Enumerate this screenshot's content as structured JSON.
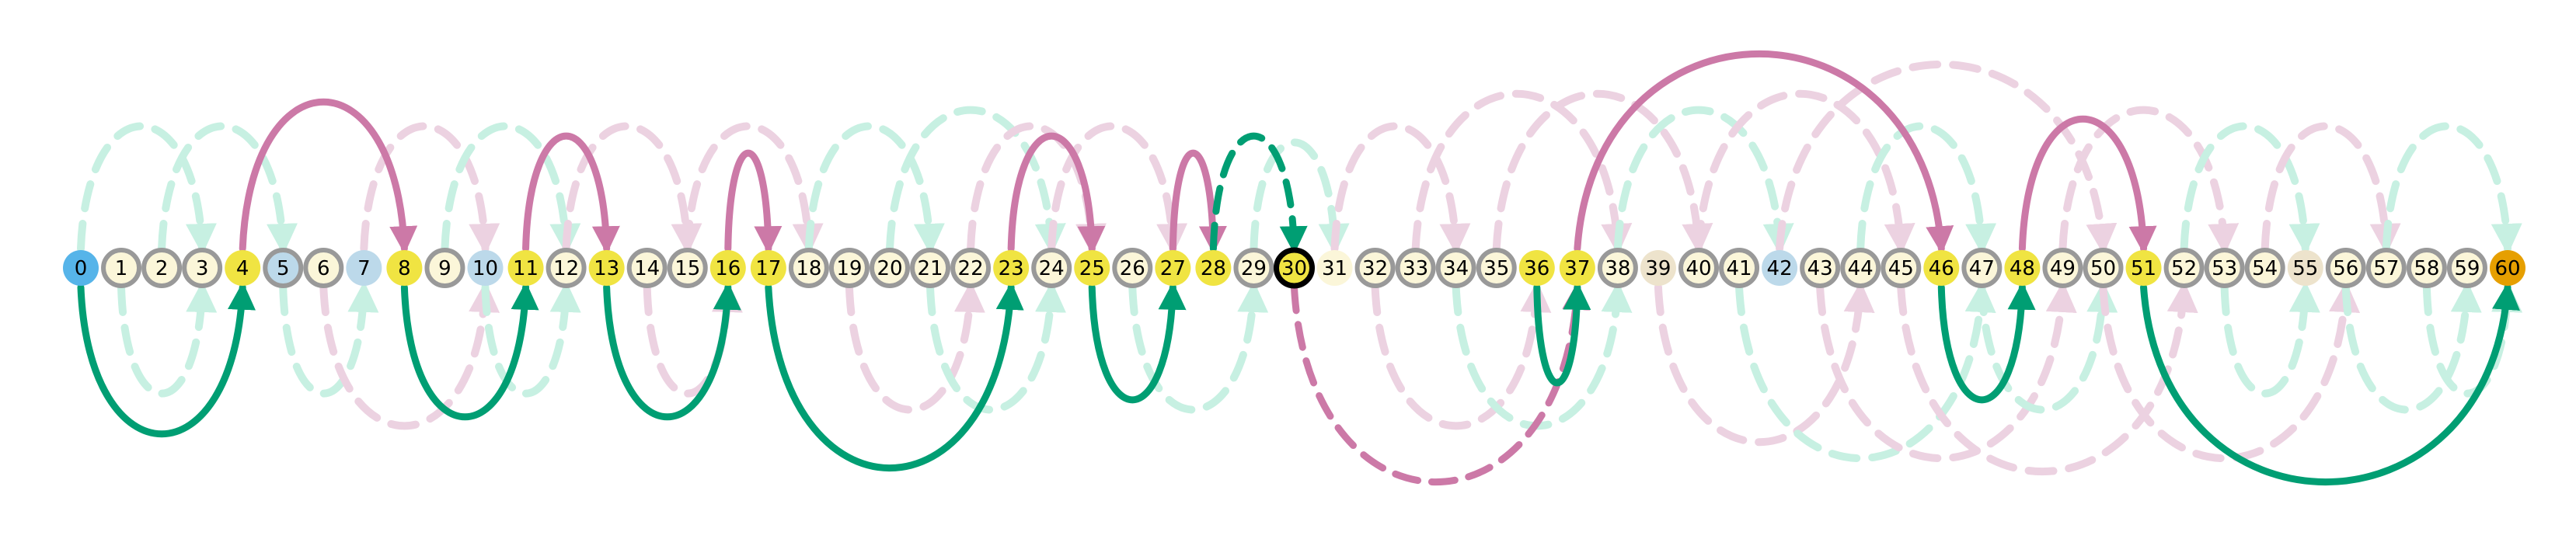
{
  "nodes": [
    {
      "label": "0",
      "color": "#56b4e9",
      "ring": "none"
    },
    {
      "label": "1",
      "color": "#fbf6d9",
      "ring": "gray"
    },
    {
      "label": "2",
      "color": "#fbf6d9",
      "ring": "gray"
    },
    {
      "label": "3",
      "color": "#fbf6d9",
      "ring": "gray"
    },
    {
      "label": "4",
      "color": "#f0e442",
      "ring": "none"
    },
    {
      "label": "5",
      "color": "#bcd9ea",
      "ring": "gray"
    },
    {
      "label": "6",
      "color": "#fbf6d9",
      "ring": "gray"
    },
    {
      "label": "7",
      "color": "#bcd9ea",
      "ring": "none"
    },
    {
      "label": "8",
      "color": "#f0e442",
      "ring": "none"
    },
    {
      "label": "9",
      "color": "#fbf6d9",
      "ring": "gray"
    },
    {
      "label": "10",
      "color": "#bcd9ea",
      "ring": "none"
    },
    {
      "label": "11",
      "color": "#f0e442",
      "ring": "none"
    },
    {
      "label": "12",
      "color": "#fbf6d9",
      "ring": "gray"
    },
    {
      "label": "13",
      "color": "#f0e442",
      "ring": "none"
    },
    {
      "label": "14",
      "color": "#fbf6d9",
      "ring": "gray"
    },
    {
      "label": "15",
      "color": "#fbf6d9",
      "ring": "gray"
    },
    {
      "label": "16",
      "color": "#f0e442",
      "ring": "none"
    },
    {
      "label": "17",
      "color": "#f0e442",
      "ring": "none"
    },
    {
      "label": "18",
      "color": "#fbf6d9",
      "ring": "gray"
    },
    {
      "label": "19",
      "color": "#fbf6d9",
      "ring": "gray"
    },
    {
      "label": "20",
      "color": "#fbf6d9",
      "ring": "gray"
    },
    {
      "label": "21",
      "color": "#fbf6d9",
      "ring": "gray"
    },
    {
      "label": "22",
      "color": "#fbf6d9",
      "ring": "gray"
    },
    {
      "label": "23",
      "color": "#f0e442",
      "ring": "none"
    },
    {
      "label": "24",
      "color": "#fbf6d9",
      "ring": "gray"
    },
    {
      "label": "25",
      "color": "#f0e442",
      "ring": "none"
    },
    {
      "label": "26",
      "color": "#fbf6d9",
      "ring": "gray"
    },
    {
      "label": "27",
      "color": "#f0e442",
      "ring": "none"
    },
    {
      "label": "28",
      "color": "#f0e442",
      "ring": "none"
    },
    {
      "label": "29",
      "color": "#fbf6d9",
      "ring": "gray"
    },
    {
      "label": "30",
      "color": "#f0e442",
      "ring": "black"
    },
    {
      "label": "31",
      "color": "#fbf6d9",
      "ring": "none"
    },
    {
      "label": "32",
      "color": "#fbf6d9",
      "ring": "gray"
    },
    {
      "label": "33",
      "color": "#fbf6d9",
      "ring": "gray"
    },
    {
      "label": "34",
      "color": "#fbf6d9",
      "ring": "gray"
    },
    {
      "label": "35",
      "color": "#fbf6d9",
      "ring": "gray"
    },
    {
      "label": "36",
      "color": "#f0e442",
      "ring": "none"
    },
    {
      "label": "37",
      "color": "#f0e442",
      "ring": "none"
    },
    {
      "label": "38",
      "color": "#fbf6d9",
      "ring": "gray"
    },
    {
      "label": "39",
      "color": "#ede3cc",
      "ring": "none"
    },
    {
      "label": "40",
      "color": "#fbf6d9",
      "ring": "gray"
    },
    {
      "label": "41",
      "color": "#fbf6d9",
      "ring": "gray"
    },
    {
      "label": "42",
      "color": "#bcd9ea",
      "ring": "none"
    },
    {
      "label": "43",
      "color": "#fbf6d9",
      "ring": "gray"
    },
    {
      "label": "44",
      "color": "#fbf6d9",
      "ring": "gray"
    },
    {
      "label": "45",
      "color": "#fbf6d9",
      "ring": "gray"
    },
    {
      "label": "46",
      "color": "#f0e442",
      "ring": "none"
    },
    {
      "label": "47",
      "color": "#fbf6d9",
      "ring": "gray"
    },
    {
      "label": "48",
      "color": "#f0e442",
      "ring": "none"
    },
    {
      "label": "49",
      "color": "#fbf6d9",
      "ring": "gray"
    },
    {
      "label": "50",
      "color": "#fbf6d9",
      "ring": "gray"
    },
    {
      "label": "51",
      "color": "#f0e442",
      "ring": "none"
    },
    {
      "label": "52",
      "color": "#fbf6d9",
      "ring": "gray"
    },
    {
      "label": "53",
      "color": "#fbf6d9",
      "ring": "gray"
    },
    {
      "label": "54",
      "color": "#fbf6d9",
      "ring": "gray"
    },
    {
      "label": "55",
      "color": "#ede3cc",
      "ring": "none"
    },
    {
      "label": "56",
      "color": "#fbf6d9",
      "ring": "gray"
    },
    {
      "label": "57",
      "color": "#fbf6d9",
      "ring": "gray"
    },
    {
      "label": "58",
      "color": "#fbf6d9",
      "ring": "gray"
    },
    {
      "label": "59",
      "color": "#fbf6d9",
      "ring": "gray"
    },
    {
      "label": "60",
      "color": "#e69f00",
      "ring": "none"
    }
  ],
  "colors": {
    "ladder": "#cc79a7",
    "snake": "#009e73",
    "ladder_faint": "#ecd2e1",
    "snake_faint": "#c7f0e2",
    "ring_gray": "#999999",
    "ring_black": "#000000"
  },
  "bold_jumps": [
    {
      "from": 0,
      "to": 4,
      "kind": "snake",
      "side": "below",
      "style": "solid"
    },
    {
      "from": 4,
      "to": 8,
      "kind": "ladder",
      "side": "above",
      "style": "solid"
    },
    {
      "from": 8,
      "to": 11,
      "kind": "snake",
      "side": "below",
      "style": "solid"
    },
    {
      "from": 11,
      "to": 13,
      "kind": "ladder",
      "side": "above",
      "style": "solid"
    },
    {
      "from": 13,
      "to": 16,
      "kind": "snake",
      "side": "below",
      "style": "solid"
    },
    {
      "from": 16,
      "to": 17,
      "kind": "ladder",
      "side": "above",
      "style": "solid"
    },
    {
      "from": 17,
      "to": 23,
      "kind": "snake",
      "side": "below",
      "style": "solid"
    },
    {
      "from": 23,
      "to": 25,
      "kind": "ladder",
      "side": "above",
      "style": "solid"
    },
    {
      "from": 25,
      "to": 27,
      "kind": "snake",
      "side": "below",
      "style": "solid"
    },
    {
      "from": 27,
      "to": 28,
      "kind": "ladder",
      "side": "above",
      "style": "solid"
    },
    {
      "from": 28,
      "to": 30,
      "kind": "snake",
      "side": "above",
      "style": "dashed"
    },
    {
      "from": 30,
      "to": 37,
      "kind": "ladder",
      "side": "below",
      "style": "dashed"
    },
    {
      "from": 36,
      "to": 37,
      "kind": "snake",
      "side": "below",
      "style": "solid"
    },
    {
      "from": 37,
      "to": 46,
      "kind": "ladder",
      "side": "above",
      "style": "solid"
    },
    {
      "from": 46,
      "to": 48,
      "kind": "snake",
      "side": "below",
      "style": "solid"
    },
    {
      "from": 48,
      "to": 51,
      "kind": "ladder",
      "side": "above",
      "style": "solid"
    },
    {
      "from": 51,
      "to": 60,
      "kind": "snake",
      "side": "below",
      "style": "solid"
    }
  ],
  "faint_jumps": [
    {
      "from": 0,
      "to": 3,
      "kind": "snake",
      "side": "above"
    },
    {
      "from": 2,
      "to": 5,
      "kind": "snake",
      "side": "above"
    },
    {
      "from": 1,
      "to": 3,
      "kind": "snake",
      "side": "below"
    },
    {
      "from": 5,
      "to": 7,
      "kind": "snake",
      "side": "below"
    },
    {
      "from": 7,
      "to": 10,
      "kind": "ladder",
      "side": "above"
    },
    {
      "from": 9,
      "to": 12,
      "kind": "snake",
      "side": "above"
    },
    {
      "from": 6,
      "to": 10,
      "kind": "ladder",
      "side": "below"
    },
    {
      "from": 10,
      "to": 12,
      "kind": "snake",
      "side": "below"
    },
    {
      "from": 12,
      "to": 15,
      "kind": "ladder",
      "side": "above"
    },
    {
      "from": 14,
      "to": 16,
      "kind": "ladder",
      "side": "below"
    },
    {
      "from": 15,
      "to": 18,
      "kind": "ladder",
      "side": "above"
    },
    {
      "from": 18,
      "to": 21,
      "kind": "snake",
      "side": "above"
    },
    {
      "from": 19,
      "to": 22,
      "kind": "ladder",
      "side": "below"
    },
    {
      "from": 20,
      "to": 24,
      "kind": "snake",
      "side": "above"
    },
    {
      "from": 21,
      "to": 24,
      "kind": "snake",
      "side": "below"
    },
    {
      "from": 22,
      "to": 25,
      "kind": "ladder",
      "side": "above"
    },
    {
      "from": 24,
      "to": 27,
      "kind": "ladder",
      "side": "above"
    },
    {
      "from": 26,
      "to": 29,
      "kind": "snake",
      "side": "below"
    },
    {
      "from": 29,
      "to": 31,
      "kind": "snake",
      "side": "above"
    },
    {
      "from": 31,
      "to": 34,
      "kind": "ladder",
      "side": "above"
    },
    {
      "from": 32,
      "to": 36,
      "kind": "ladder",
      "side": "below"
    },
    {
      "from": 33,
      "to": 38,
      "kind": "ladder",
      "side": "above"
    },
    {
      "from": 34,
      "to": 38,
      "kind": "snake",
      "side": "below"
    },
    {
      "from": 35,
      "to": 40,
      "kind": "ladder",
      "side": "above"
    },
    {
      "from": 38,
      "to": 42,
      "kind": "snake",
      "side": "above"
    },
    {
      "from": 39,
      "to": 44,
      "kind": "ladder",
      "side": "below"
    },
    {
      "from": 40,
      "to": 45,
      "kind": "ladder",
      "side": "above"
    },
    {
      "from": 41,
      "to": 47,
      "kind": "snake",
      "side": "below"
    },
    {
      "from": 42,
      "to": 50,
      "kind": "ladder",
      "side": "above"
    },
    {
      "from": 43,
      "to": 49,
      "kind": "ladder",
      "side": "below"
    },
    {
      "from": 44,
      "to": 47,
      "kind": "snake",
      "side": "above"
    },
    {
      "from": 45,
      "to": 52,
      "kind": "ladder",
      "side": "below"
    },
    {
      "from": 47,
      "to": 50,
      "kind": "snake",
      "side": "below"
    },
    {
      "from": 49,
      "to": 53,
      "kind": "ladder",
      "side": "above"
    },
    {
      "from": 50,
      "to": 56,
      "kind": "ladder",
      "side": "below"
    },
    {
      "from": 52,
      "to": 55,
      "kind": "snake",
      "side": "above"
    },
    {
      "from": 53,
      "to": 55,
      "kind": "snake",
      "side": "below"
    },
    {
      "from": 54,
      "to": 57,
      "kind": "ladder",
      "side": "above"
    },
    {
      "from": 56,
      "to": 59,
      "kind": "snake",
      "side": "below"
    },
    {
      "from": 57,
      "to": 60,
      "kind": "snake",
      "side": "above"
    },
    {
      "from": 58,
      "to": 60,
      "kind": "snake",
      "side": "below"
    }
  ]
}
